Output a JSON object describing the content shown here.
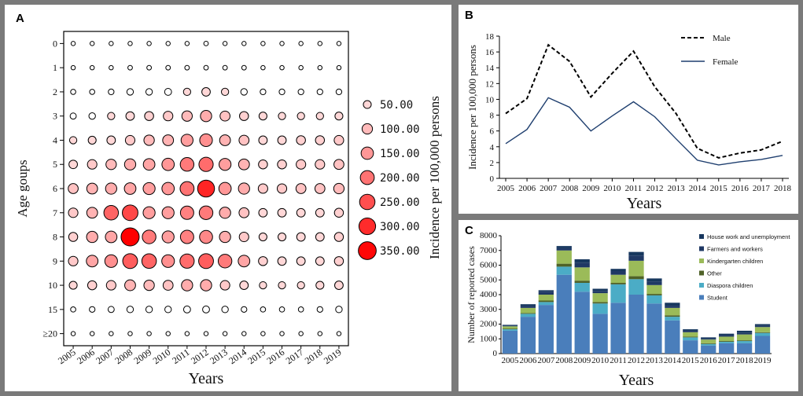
{
  "panels": {
    "a": "A",
    "b": "B",
    "c": "C"
  },
  "chart_data": [
    {
      "id": "A",
      "type": "scatter",
      "subtype": "bubble",
      "xlabel": "Years",
      "ylabel": "Age goups",
      "size_legend_title": "Incidence per 100,000 persons",
      "x": [
        "2005",
        "2006",
        "2007",
        "2008",
        "2009",
        "2010",
        "2011",
        "2012",
        "2013",
        "2014",
        "2015",
        "2016",
        "2017",
        "2018",
        "2019"
      ],
      "y": [
        "0",
        "1",
        "2",
        "3",
        "4",
        "5",
        "6",
        "7",
        "8",
        "9",
        "10",
        "15",
        "≥20"
      ],
      "size_legend": [
        "50.00",
        "100.00",
        "150.00",
        "200.00",
        "250.00",
        "300.00",
        "350.00"
      ],
      "size_legend_values": [
        50,
        100,
        150,
        200,
        250,
        300,
        350
      ],
      "values": [
        [
          8,
          8,
          8,
          8,
          8,
          8,
          8,
          10,
          8,
          8,
          8,
          8,
          8,
          8,
          8
        ],
        [
          8,
          8,
          8,
          10,
          10,
          10,
          10,
          10,
          10,
          10,
          8,
          8,
          8,
          8,
          8
        ],
        [
          15,
          15,
          20,
          30,
          30,
          35,
          40,
          60,
          40,
          30,
          20,
          20,
          20,
          20,
          20
        ],
        [
          25,
          30,
          40,
          60,
          70,
          80,
          100,
          120,
          90,
          70,
          50,
          40,
          40,
          40,
          50
        ],
        [
          40,
          50,
          60,
          80,
          100,
          110,
          140,
          160,
          110,
          90,
          60,
          60,
          70,
          70,
          80
        ],
        [
          60,
          80,
          100,
          120,
          130,
          150,
          190,
          210,
          140,
          110,
          70,
          70,
          80,
          80,
          90
        ],
        [
          90,
          110,
          120,
          130,
          140,
          150,
          200,
          310,
          150,
          120,
          80,
          80,
          90,
          90,
          100
        ],
        [
          80,
          110,
          220,
          260,
          140,
          140,
          180,
          190,
          120,
          90,
          60,
          60,
          60,
          60,
          70
        ],
        [
          70,
          120,
          130,
          360,
          190,
          140,
          180,
          170,
          120,
          80,
          50,
          50,
          60,
          60,
          70
        ],
        [
          80,
          130,
          160,
          230,
          220,
          160,
          210,
          230,
          190,
          130,
          70,
          60,
          60,
          60,
          70
        ],
        [
          50,
          70,
          80,
          110,
          100,
          90,
          120,
          120,
          80,
          60,
          40,
          40,
          40,
          50,
          60
        ],
        [
          15,
          20,
          25,
          30,
          30,
          30,
          35,
          35,
          30,
          20,
          15,
          15,
          15,
          20,
          30
        ],
        [
          8,
          8,
          8,
          8,
          8,
          8,
          8,
          8,
          8,
          8,
          8,
          8,
          8,
          8,
          8
        ]
      ]
    },
    {
      "id": "B",
      "type": "line",
      "xlabel": "Years",
      "ylabel": "Incidence per 100,000 persons",
      "x": [
        "2005",
        "2006",
        "2007",
        "2008",
        "2009",
        "2010",
        "2011",
        "2012",
        "2013",
        "2014",
        "2015",
        "2016",
        "2017",
        "2018"
      ],
      "ylim": [
        0,
        18
      ],
      "yticks": [
        0,
        2,
        4,
        6,
        8,
        10,
        12,
        14,
        16,
        18
      ],
      "legend_position": "top-right",
      "series": [
        {
          "name": "Male",
          "style": "dashed",
          "color": "#000000",
          "values": [
            8.2,
            10.1,
            16.9,
            14.8,
            10.3,
            13.3,
            16.1,
            11.6,
            8.2,
            3.8,
            2.6,
            3.2,
            3.6,
            4.7
          ]
        },
        {
          "name": "Female",
          "style": "solid",
          "color": "#1f3f6f",
          "values": [
            4.4,
            6.2,
            10.2,
            9.0,
            6.0,
            7.9,
            9.7,
            7.8,
            5.0,
            2.3,
            1.7,
            2.1,
            2.4,
            2.9
          ]
        }
      ]
    },
    {
      "id": "C",
      "type": "bar",
      "stacked": true,
      "xlabel": "Years",
      "ylabel": "Number of reported cases",
      "categories": [
        "2005",
        "2006",
        "2007",
        "2008",
        "2009",
        "2010",
        "2011",
        "2012",
        "2013",
        "2014",
        "2015",
        "2016",
        "2017",
        "2018",
        "2019"
      ],
      "ylim": [
        0,
        8000
      ],
      "yticks": [
        0,
        1000,
        2000,
        3000,
        4000,
        5000,
        6000,
        7000,
        8000
      ],
      "legend_position": "top-right",
      "series": [
        {
          "name": "Student",
          "color": "#4a7ebb",
          "values": [
            1550,
            2500,
            3300,
            5350,
            4200,
            2700,
            3450,
            4000,
            3400,
            2250,
            900,
            550,
            700,
            700,
            1200
          ]
        },
        {
          "name": "Diaspora  children",
          "color": "#4bacc6",
          "values": [
            100,
            200,
            200,
            550,
            600,
            700,
            1250,
            1050,
            550,
            250,
            200,
            100,
            100,
            150,
            200
          ]
        },
        {
          "name": "Other",
          "color": "#4f6228",
          "values": [
            50,
            50,
            100,
            200,
            150,
            100,
            100,
            200,
            100,
            100,
            50,
            50,
            50,
            50,
            50
          ]
        },
        {
          "name": "Kindergarten children",
          "color": "#9bbb59",
          "values": [
            150,
            350,
            400,
            900,
            900,
            600,
            550,
            1050,
            600,
            500,
            300,
            250,
            300,
            400,
            350
          ]
        },
        {
          "name": "Farmers and workers",
          "color": "#1f3864",
          "values": [
            50,
            150,
            200,
            150,
            300,
            150,
            250,
            350,
            250,
            150,
            100,
            50,
            100,
            100,
            100
          ]
        },
        {
          "name": "House work and unemployment",
          "color": "#17375e",
          "values": [
            50,
            100,
            100,
            150,
            250,
            150,
            150,
            250,
            200,
            200,
            100,
            100,
            100,
            150,
            100
          ]
        }
      ]
    }
  ]
}
